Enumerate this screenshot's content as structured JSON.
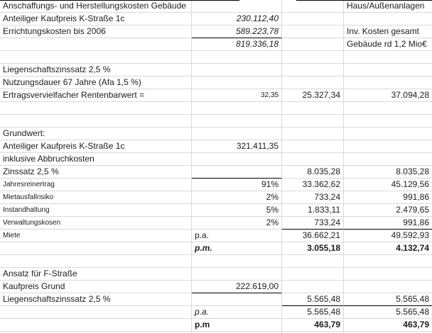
{
  "sheet": {
    "grid_color": "#d9d9d9",
    "border_color": "#000000",
    "text_color": "#1c1c1c",
    "columns": [
      "label",
      "value1",
      "value2",
      "value3"
    ],
    "rows": [
      {
        "a": "Anschaffungs- und Herstellungskosten Gebäude",
        "d": "Haus/Außenanlagen"
      },
      {
        "a": "Anteiliger Kaufpreis K-Straße 1c",
        "b": "230.112,40"
      },
      {
        "a": "Errichtungskosten bis 2006",
        "b": "589.223,78",
        "d": "Inv. Kosten gesamt"
      },
      {
        "b": "819.336,18",
        "d": "Gebäude rd 1,2 Mio€"
      },
      {},
      {
        "a": "Liegenschaftszinssatz 2,5 %"
      },
      {
        "a": "Nutzungsdauer 67 Jahre (Afa 1,5 %)"
      },
      {
        "a": "Ertragsvervielfacher Rentenbarwert =",
        "b": "32,35",
        "c": "25.327,34",
        "d": "37.094,28"
      },
      {},
      {},
      {
        "a": "Grundwert:"
      },
      {
        "a": "Anteiliger Kaufpreis K-Straße 1c",
        "b": "321.411,35"
      },
      {
        "a": "inklusive Abbruchkosten"
      },
      {
        "a": "Zinssatz 2,5 %",
        "c": "8.035,28",
        "d": "8.035,28"
      },
      {
        "a": "Jahresreinertrag",
        "b": "91%",
        "c": "33.362,62",
        "d": "45.129,56"
      },
      {
        "a": "Mietausfallrisiko",
        "b": "2%",
        "c": "733,24",
        "d": "991,86"
      },
      {
        "a": "Instandhaltung",
        "b": "5%",
        "c": "1.833,11",
        "d": "2.479,65"
      },
      {
        "a": "Verwaltungskosen",
        "b": "2%",
        "c": "733,24",
        "d": "991,86"
      },
      {
        "a": "Miete",
        "b": "p.a.",
        "c": "36.662,21",
        "d": "49.592,93"
      },
      {
        "b": "p.m.",
        "c": "3.055,18",
        "d": "4.132,74"
      },
      {},
      {
        "a": "Ansatz für F-Straße"
      },
      {
        "a": "Kaufpreis Grund",
        "b": "222.619,00"
      },
      {
        "a": "Liegenschaftszinssatz 2,5 %",
        "c": "5.565,48",
        "d": "5.565,48"
      },
      {
        "b": "p.a.",
        "c": "5.565,48",
        "d": "5.565,48"
      },
      {
        "b": "p.m",
        "c": "463,79",
        "d": "463,79"
      }
    ]
  }
}
